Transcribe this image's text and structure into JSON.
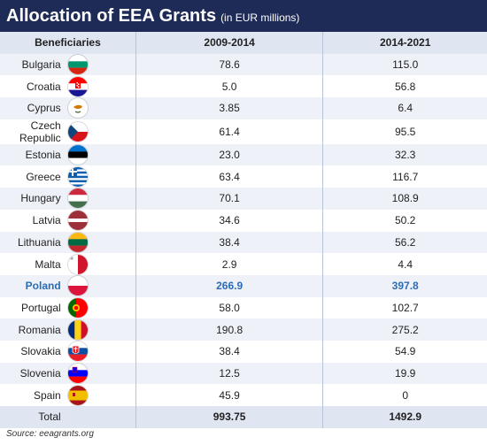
{
  "header": {
    "title": "Allocation of EEA Grants",
    "subtitle": "(in EUR millions)"
  },
  "columns": {
    "beneficiaries": "Beneficiaries",
    "period1": "2009-2014",
    "period2": "2014-2021"
  },
  "rows": [
    {
      "country": "Bulgaria",
      "v1": "78.6",
      "v2": "115.0",
      "flag": "bulgaria-flag-icon"
    },
    {
      "country": "Croatia",
      "v1": "5.0",
      "v2": "56.8",
      "flag": "croatia-flag-icon"
    },
    {
      "country": "Cyprus",
      "v1": "3.85",
      "v2": "6.4",
      "flag": "cyprus-flag-icon"
    },
    {
      "country": "Czech Republic",
      "v1": "61.4",
      "v2": "95.5",
      "flag": "czech-flag-icon"
    },
    {
      "country": "Estonia",
      "v1": "23.0",
      "v2": "32.3",
      "flag": "estonia-flag-icon"
    },
    {
      "country": "Greece",
      "v1": "63.4",
      "v2": "116.7",
      "flag": "greece-flag-icon"
    },
    {
      "country": "Hungary",
      "v1": "70.1",
      "v2": "108.9",
      "flag": "hungary-flag-icon"
    },
    {
      "country": "Latvia",
      "v1": "34.6",
      "v2": "50.2",
      "flag": "latvia-flag-icon"
    },
    {
      "country": "Lithuania",
      "v1": "38.4",
      "v2": "56.2",
      "flag": "lithuania-flag-icon"
    },
    {
      "country": "Malta",
      "v1": "2.9",
      "v2": "4.4",
      "flag": "malta-flag-icon"
    },
    {
      "country": "Poland",
      "v1": "266.9",
      "v2": "397.8",
      "flag": "poland-flag-icon",
      "highlight": true
    },
    {
      "country": "Portugal",
      "v1": "58.0",
      "v2": "102.7",
      "flag": "portugal-flag-icon"
    },
    {
      "country": "Romania",
      "v1": "190.8",
      "v2": "275.2",
      "flag": "romania-flag-icon"
    },
    {
      "country": "Slovakia",
      "v1": "38.4",
      "v2": "54.9",
      "flag": "slovakia-flag-icon"
    },
    {
      "country": "Slovenia",
      "v1": "12.5",
      "v2": "19.9",
      "flag": "slovenia-flag-icon"
    },
    {
      "country": "Spain",
      "v1": "45.9",
      "v2": "0",
      "flag": "spain-flag-icon"
    }
  ],
  "total": {
    "label": "Total",
    "v1": "993.75",
    "v2": "1492.9"
  },
  "source": "Source: eeagrants.org",
  "colors": {
    "title_bg": "#1f2b57",
    "highlight": "#2d6cb5",
    "header_bg": "#dfe5f1"
  },
  "chart_data": {
    "type": "table",
    "title": "Allocation of EEA Grants",
    "subtitle": "(in EUR millions)",
    "columns": [
      "Beneficiaries",
      "2009-2014",
      "2014-2021"
    ],
    "categories": [
      "Bulgaria",
      "Croatia",
      "Cyprus",
      "Czech Republic",
      "Estonia",
      "Greece",
      "Hungary",
      "Latvia",
      "Lithuania",
      "Malta",
      "Poland",
      "Portugal",
      "Romania",
      "Slovakia",
      "Slovenia",
      "Spain"
    ],
    "series": [
      {
        "name": "2009-2014",
        "values": [
          78.6,
          5.0,
          3.85,
          61.4,
          23.0,
          63.4,
          70.1,
          34.6,
          38.4,
          2.9,
          266.9,
          58.0,
          190.8,
          38.4,
          12.5,
          45.9
        ]
      },
      {
        "name": "2014-2021",
        "values": [
          115.0,
          56.8,
          6.4,
          95.5,
          32.3,
          116.7,
          108.9,
          50.2,
          56.2,
          4.4,
          397.8,
          102.7,
          275.2,
          54.9,
          19.9,
          0
        ]
      }
    ],
    "totals": {
      "2009-2014": 993.75,
      "2014-2021": 1492.9
    },
    "highlight": "Poland"
  }
}
